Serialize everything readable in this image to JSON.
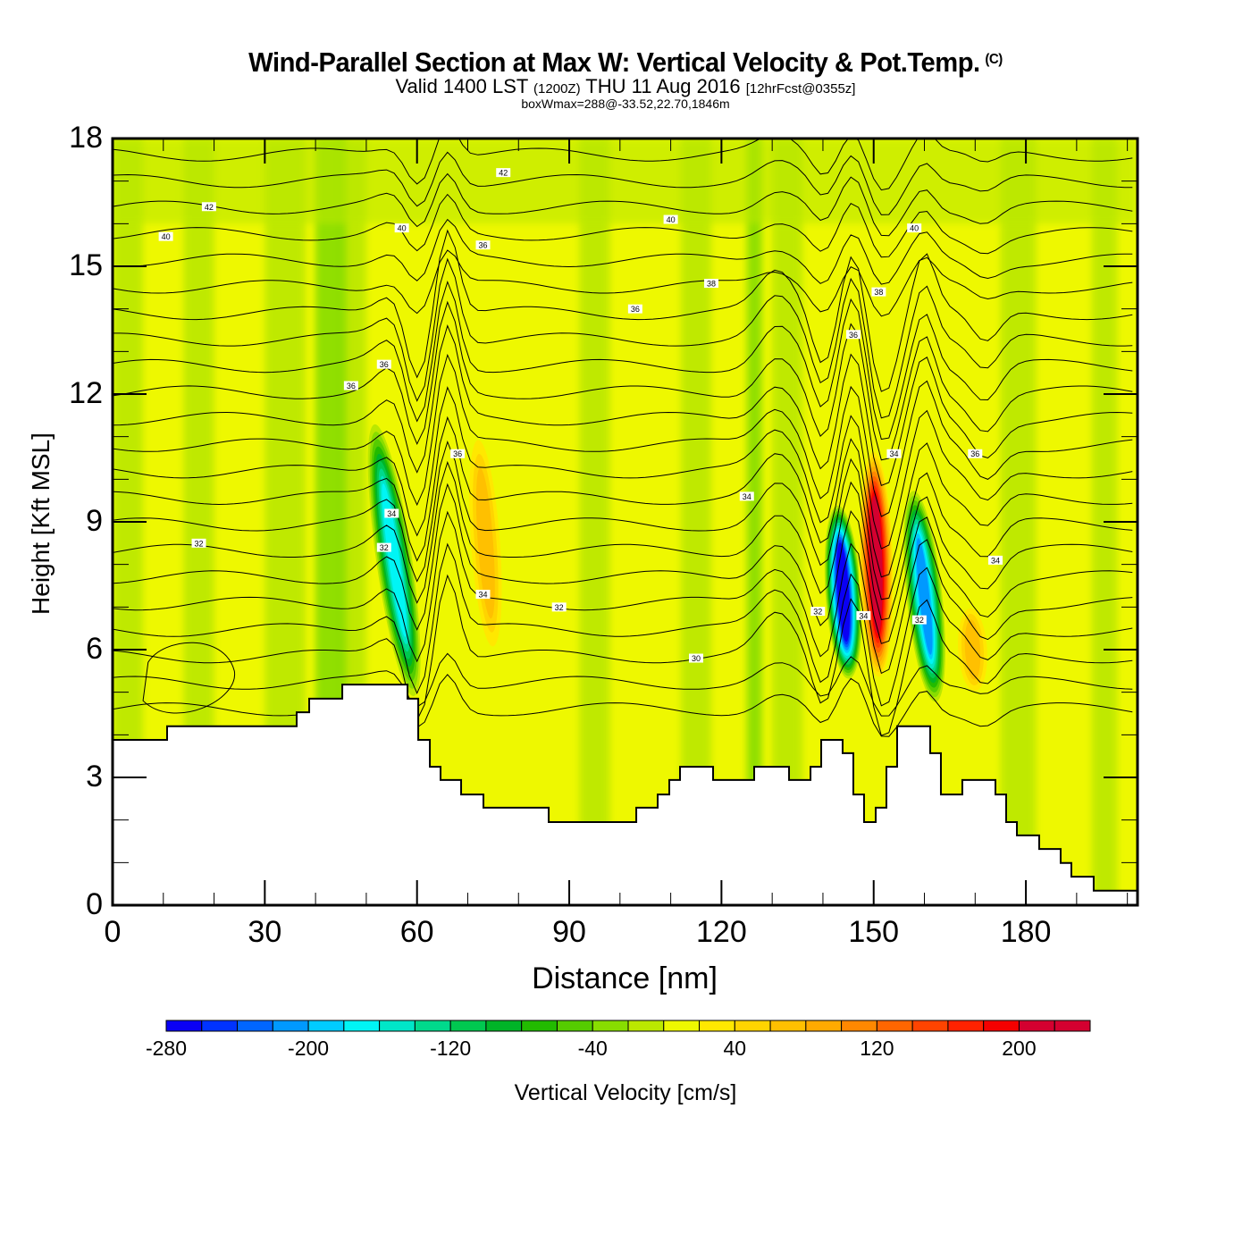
{
  "header": {
    "title": "Wind-Parallel Section at Max W: Vertical Velocity & Pot.Temp.",
    "copyright": "(C)",
    "subtitle_prefix": "Valid 1400 LST",
    "subtitle_utc": "(1200Z)",
    "subtitle_date": "THU 11 Aug 2016",
    "subtitle_fcst": "[12hrFcst@0355z]",
    "boxline": "boxWmax=288@-33.52,22.70,1846m"
  },
  "chart_data": {
    "type": "heatmap",
    "title": "Wind-Parallel Section at Max W: Vertical Velocity & Pot.Temp.",
    "xlabel": "Distance [nm]",
    "ylabel": "Height [Kft MSL]",
    "xlim": [
      0,
      202
    ],
    "ylim": [
      0,
      18
    ],
    "xticks": [
      0,
      30,
      60,
      90,
      120,
      150,
      180
    ],
    "xtick_labels": [
      "0",
      "30",
      "60",
      "90",
      "120",
      "150",
      "180"
    ],
    "yticks": [
      0,
      3,
      6,
      9,
      12,
      15,
      18
    ],
    "ytick_labels": [
      "0",
      "3",
      "6",
      "9",
      "12",
      "15",
      "18"
    ],
    "x_minor_step": 10,
    "y_minor_step": 1,
    "colorbar": {
      "label": "Vertical Velocity [cm/s]",
      "min": -280,
      "max": 240,
      "step": 20,
      "tick_values": [
        -280,
        -200,
        -120,
        -40,
        40,
        120,
        200
      ],
      "tick_labels": [
        "-280",
        "-200",
        "-120",
        "-40",
        "40",
        "120",
        "200"
      ],
      "colors": [
        "#0a00f5",
        "#0033ff",
        "#0066ff",
        "#0099ff",
        "#00ccff",
        "#00f5f5",
        "#00e6c8",
        "#00d98c",
        "#00c850",
        "#00b428",
        "#22bb00",
        "#55cc00",
        "#88dd00",
        "#bbe800",
        "#eef800",
        "#ffe800",
        "#ffd400",
        "#ffc000",
        "#ffaa00",
        "#ff8800",
        "#ff6600",
        "#ff4400",
        "#ff2200",
        "#f50000",
        "#d40030"
      ]
    },
    "terrain_kft": {
      "distance_nm": [
        0,
        10.74,
        36.28,
        38.75,
        45.27,
        58.13,
        60.24,
        62.53,
        64.64,
        68.69,
        73.09,
        85.95,
        103.21,
        107.43,
        109.72,
        111.83,
        118.35,
        126.45,
        133.32,
        137.55,
        139.66,
        143.88,
        145.99,
        148.1,
        150.4,
        152.51,
        154.62,
        161.14,
        163.25,
        167.47,
        174.0,
        176.11,
        178.23,
        182.62,
        186.85,
        188.96,
        193.36,
        202
      ],
      "height_kft": [
        3.88,
        4.2,
        4.53,
        4.85,
        5.18,
        4.85,
        3.88,
        3.25,
        2.94,
        2.6,
        2.29,
        1.95,
        2.29,
        2.6,
        2.94,
        3.25,
        2.94,
        3.25,
        2.94,
        3.25,
        3.88,
        3.57,
        2.6,
        1.95,
        2.29,
        3.25,
        4.2,
        3.57,
        2.6,
        2.94,
        2.6,
        1.95,
        1.64,
        1.32,
        0.99,
        0.67,
        0.34,
        0.34
      ]
    },
    "w_features": [
      {
        "kind": "downdraft",
        "x_top": 52,
        "y_top": 11,
        "x_bot": 59,
        "y_bot": 5.2,
        "peak_cm_s": -160
      },
      {
        "kind": "updraft",
        "x_top": 72,
        "y_top": 11,
        "x_bot": 75,
        "y_bot": 6,
        "peak_cm_s": 60
      },
      {
        "kind": "downdraft",
        "x_top": 143,
        "y_top": 9.2,
        "x_bot": 145,
        "y_bot": 5.5,
        "peak_cm_s": -280
      },
      {
        "kind": "updraft",
        "x_top": 150,
        "y_top": 10.5,
        "x_bot": 151,
        "y_bot": 5.5,
        "peak_cm_s": 220
      },
      {
        "kind": "downdraft",
        "x_top": 158,
        "y_top": 9.5,
        "x_bot": 162,
        "y_bot": 5,
        "peak_cm_s": -200
      },
      {
        "kind": "updraft",
        "x_top": 169,
        "y_top": 7,
        "x_bot": 170,
        "y_bot": 5,
        "peak_cm_s": 60
      }
    ],
    "contour_labels": [
      {
        "text": "42",
        "x": 19,
        "y": 16.4
      },
      {
        "text": "40",
        "x": 10.5,
        "y": 15.7
      },
      {
        "text": "42",
        "x": 77,
        "y": 17.2
      },
      {
        "text": "40",
        "x": 57,
        "y": 15.9
      },
      {
        "text": "36",
        "x": 73,
        "y": 15.5
      },
      {
        "text": "40",
        "x": 110,
        "y": 16.1
      },
      {
        "text": "38",
        "x": 118,
        "y": 14.6
      },
      {
        "text": "36",
        "x": 103,
        "y": 14.0
      },
      {
        "text": "40",
        "x": 158,
        "y": 15.9
      },
      {
        "text": "38",
        "x": 151,
        "y": 14.4
      },
      {
        "text": "36",
        "x": 146,
        "y": 13.4
      },
      {
        "text": "36",
        "x": 53.5,
        "y": 12.7
      },
      {
        "text": "36",
        "x": 47,
        "y": 12.2
      },
      {
        "text": "36",
        "x": 68,
        "y": 10.6
      },
      {
        "text": "34",
        "x": 154,
        "y": 10.6
      },
      {
        "text": "36",
        "x": 170,
        "y": 10.6
      },
      {
        "text": "34",
        "x": 125,
        "y": 9.6
      },
      {
        "text": "34",
        "x": 55,
        "y": 9.2
      },
      {
        "text": "32",
        "x": 17,
        "y": 8.5
      },
      {
        "text": "32",
        "x": 53.5,
        "y": 8.4
      },
      {
        "text": "34",
        "x": 174,
        "y": 8.1
      },
      {
        "text": "34",
        "x": 73,
        "y": 7.3
      },
      {
        "text": "32",
        "x": 88,
        "y": 7.0
      },
      {
        "text": "32",
        "x": 139,
        "y": 6.9
      },
      {
        "text": "34",
        "x": 148,
        "y": 6.8
      },
      {
        "text": "32",
        "x": 159,
        "y": 6.7
      },
      {
        "text": "30",
        "x": 115,
        "y": 5.8
      }
    ]
  }
}
